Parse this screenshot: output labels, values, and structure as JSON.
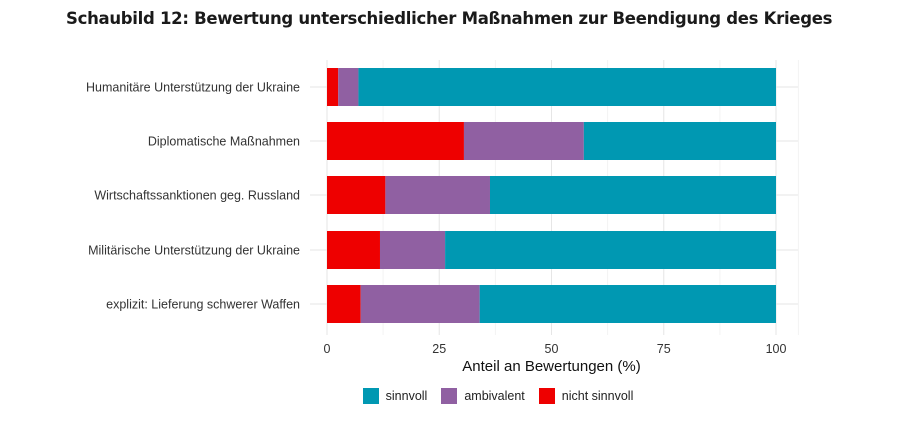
{
  "chart_data": {
    "type": "bar",
    "orientation": "horizontal",
    "stacked": true,
    "title": "Schaubild 12: Bewertung unterschiedlicher Maßnahmen zur Beendigung des Krieges",
    "xlabel": "Anteil an Bewertungen (%)",
    "ylabel": "",
    "xlim": [
      0,
      100
    ],
    "xticks": [
      "0",
      "25",
      "50",
      "75",
      "100"
    ],
    "grid": true,
    "legend_position": "bottom",
    "categories": [
      "Humanitäre Unterstützung der Ukraine",
      "Diplomatische Maßnahmen",
      "Wirtschaftssanktionen geg. Russland",
      "Militärische Unterstützung der Ukraine",
      "explizit: Lieferung schwerer Waffen"
    ],
    "series": [
      {
        "name": "nicht sinnvoll",
        "color": "#ee0000",
        "values": [
          2.5,
          30.5,
          13,
          11.8,
          7.5
        ]
      },
      {
        "name": "ambivalent",
        "color": "#9060a2",
        "values": [
          4.5,
          26.7,
          23.3,
          14.5,
          26.5
        ]
      },
      {
        "name": "sinnvoll",
        "color": "#0098b2",
        "values": [
          93,
          42.8,
          63.7,
          73.7,
          66
        ]
      }
    ],
    "legend_order": [
      "sinnvoll",
      "ambivalent",
      "nicht sinnvoll"
    ]
  }
}
